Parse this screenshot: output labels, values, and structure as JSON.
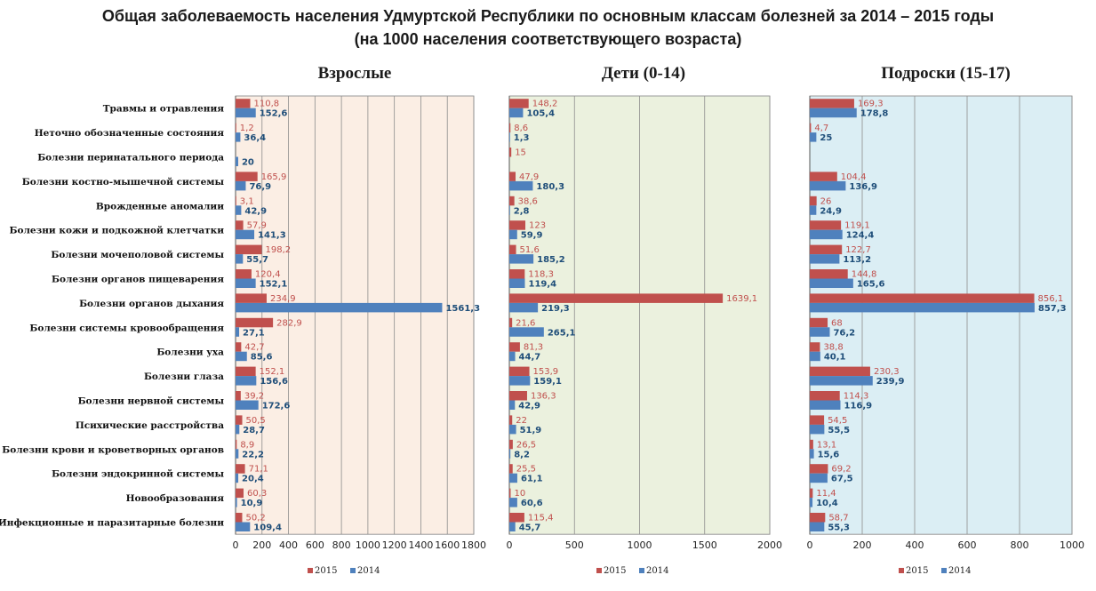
{
  "title": "Общая заболеваемость населения Удмуртской Республики по основным классам болезней за 2014 – 2015 годы",
  "subtitle": "(на 1000 населения соответствующего  возраста)",
  "colors": {
    "s2015": "#c0504d",
    "s2014": "#4f81bd"
  },
  "chart_data": [
    {
      "type": "bar",
      "title": "Взрослые",
      "categories": [
        "Травмы  и отравления",
        "Неточно обозначенные  состояния",
        "Болезни перинатального  периода",
        "Болезни костно-мышечной  системы",
        "Врожденные  аномалии",
        "Болезни кожи и подкожной  клетчатки",
        "Болезни мочеполовой  системы",
        "Болезни органов  пищеварения",
        "Болезни органов  дыхания",
        "Болезни системы  кровообращения",
        "Болезни уха",
        "Болезни глаза",
        "Болезни нервной  системы",
        "Психические  расстройства",
        "Болезни крови и кроветворных  органов",
        "Болезни эндокринной  системы",
        "Новообразования",
        "Инфекционные  и паразитарные  болезни"
      ],
      "series": [
        {
          "name": "2015",
          "values": [
            110.8,
            1.2,
            null,
            165.9,
            3.1,
            57.9,
            198.2,
            120.4,
            234.9,
            282.9,
            42.7,
            152.1,
            39.2,
            50.5,
            8.9,
            71.1,
            60.3,
            50.2
          ],
          "labels": [
            "110,8",
            "1,2",
            "",
            "165,9",
            "3,1",
            "57,9",
            "198,2",
            "120,4",
            "234,9",
            "282,9",
            "42,7",
            "152,1",
            "39,2",
            "50,5",
            "8,9",
            "71,1",
            "60,3",
            "50,2"
          ]
        },
        {
          "name": "2014",
          "values": [
            152.6,
            36.4,
            20,
            76.9,
            42.9,
            141.3,
            55.7,
            152.1,
            1561.3,
            27.1,
            85.6,
            156.6,
            172.6,
            28.7,
            22.2,
            20.4,
            10.9,
            109.4
          ],
          "labels": [
            "152,6",
            "36,4",
            "20",
            "76,9",
            "42,9",
            "141,3",
            "55,7",
            "152,1",
            "1561,3",
            "27,1",
            "85,6",
            "156,6",
            "172,6",
            "28,7",
            "22,2",
            "20,4",
            "10,9",
            "109,4"
          ]
        }
      ],
      "xlim": [
        0,
        1800
      ],
      "ticks": [
        "0",
        "200",
        "400",
        "600",
        "800",
        "1000",
        "1200",
        "1400",
        "1600",
        "1800"
      ],
      "background": "#fbeee4",
      "legend_position": "bottom"
    },
    {
      "type": "bar",
      "title": "Дети  (0-14)",
      "series": [
        {
          "name": "2015",
          "values": [
            148.2,
            8.6,
            15,
            47.9,
            38.6,
            123,
            51.6,
            118.3,
            1639.1,
            21.6,
            81.3,
            153.9,
            136.3,
            22,
            26.5,
            25.5,
            10,
            115.4
          ],
          "labels": [
            "148,2",
            "8,6",
            "15",
            "47,9",
            "38,6",
            "123",
            "51,6",
            "118,3",
            "1639,1",
            "21,6",
            "81,3",
            "153,9",
            "136,3",
            "22",
            "26,5",
            "25,5",
            "10",
            "115,4"
          ]
        },
        {
          "name": "2014",
          "values": [
            105.4,
            1.3,
            null,
            180.3,
            2.8,
            59.9,
            185.2,
            119.4,
            219.3,
            265.1,
            44.7,
            159.1,
            42.9,
            51.9,
            8.2,
            61.1,
            60.6,
            45.7
          ],
          "labels": [
            "105,4",
            "1,3",
            "",
            "180,3",
            "2,8",
            "59,9",
            "185,2",
            "119,4",
            "219,3",
            "265,1",
            "44,7",
            "159,1",
            "42,9",
            "51,9",
            "8,2",
            "61,1",
            "60,6",
            "45,7"
          ]
        }
      ],
      "xlim": [
        0,
        2000
      ],
      "ticks": [
        "0",
        "500",
        "1000",
        "1500",
        "2000"
      ],
      "background": "#ebf1de",
      "legend_position": "bottom"
    },
    {
      "type": "bar",
      "title": "Подроски  (15-17)",
      "series": [
        {
          "name": "2015",
          "values": [
            169.3,
            4.7,
            null,
            104.4,
            26,
            119.1,
            122.7,
            144.8,
            856.1,
            68,
            38.8,
            230.3,
            114.3,
            54.5,
            13.1,
            69.2,
            11.4,
            58.7
          ],
          "labels": [
            "169,3",
            "4,7",
            "",
            "104,4",
            "26",
            "119,1",
            "122,7",
            "144,8",
            "856,1",
            "68",
            "38,8",
            "230,3",
            "114,3",
            "54,5",
            "13,1",
            "69,2",
            "11,4",
            "58,7"
          ]
        },
        {
          "name": "2014",
          "values": [
            178.8,
            25,
            null,
            136.9,
            24.9,
            124.4,
            113.2,
            165.6,
            857.3,
            76.2,
            40.1,
            239.9,
            116.9,
            55.5,
            15.6,
            67.5,
            10.4,
            55.3
          ],
          "labels": [
            "178,8",
            "25",
            "",
            "136,9",
            "24,9",
            "124,4",
            "113,2",
            "165,6",
            "857,3",
            "76,2",
            "40,1",
            "239,9",
            "116,9",
            "55,5",
            "15,6",
            "67,5",
            "10,4",
            "55,3"
          ]
        }
      ],
      "xlim": [
        0,
        1000
      ],
      "ticks": [
        "0",
        "200",
        "400",
        "600",
        "800",
        "1000"
      ],
      "background": "#dbeef4",
      "legend_position": "bottom"
    }
  ]
}
